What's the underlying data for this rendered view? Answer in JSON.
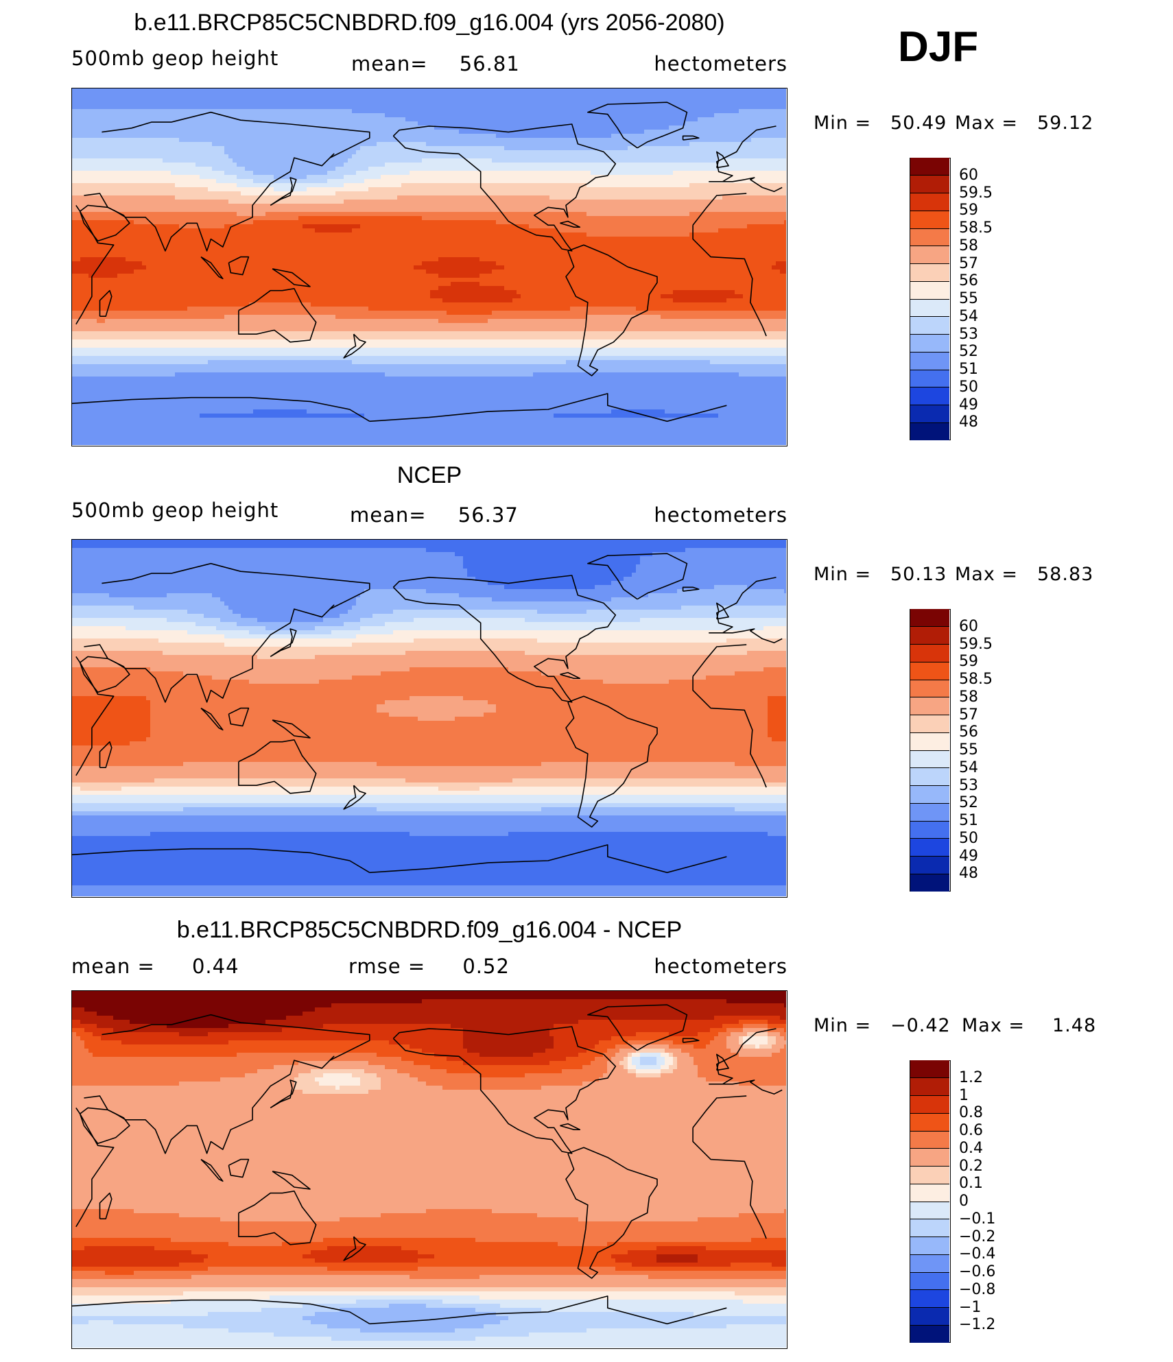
{
  "season": "DJF",
  "panels": [
    {
      "id": "model",
      "title": "b.e11.BRCP85C5CNBDRD.f09_g16.004 (yrs 2056-2080)",
      "left_label": "500mb geop height",
      "center_label": "mean=",
      "center_value": "56.81",
      "right_label": "hectometers",
      "min_label": "Min =",
      "min_value": "50.49",
      "max_label": "Max =",
      "max_value": "59.12",
      "colorbar": {
        "labels": [
          "60",
          "59.5",
          "59",
          "58.5",
          "58",
          "57",
          "56",
          "55",
          "54",
          "53",
          "52",
          "51",
          "50",
          "49",
          "48"
        ],
        "colors": [
          "#7a0403",
          "#b11d06",
          "#d8340a",
          "#ef5417",
          "#f47a48",
          "#f7a583",
          "#fbd0b7",
          "#fdeee2",
          "#dbe9f9",
          "#bcd5fb",
          "#97b8fa",
          "#6f95f6",
          "#4470ef",
          "#1d46e0",
          "#0a2ab0",
          "#00137a"
        ]
      },
      "field": {
        "bands": [
          {
            "lat": 90,
            "value": 51.5
          },
          {
            "lat": 70,
            "value": 52.5
          },
          {
            "lat": 55,
            "value": 53.8
          },
          {
            "lat": 45,
            "value": 55.5
          },
          {
            "lat": 35,
            "value": 57.0
          },
          {
            "lat": 25,
            "value": 58.3
          },
          {
            "lat": 10,
            "value": 58.8
          },
          {
            "lat": 0,
            "value": 58.9
          },
          {
            "lat": -10,
            "value": 58.8
          },
          {
            "lat": -20,
            "value": 58.6
          },
          {
            "lat": -30,
            "value": 57.6
          },
          {
            "lat": -40,
            "value": 55.3
          },
          {
            "lat": -50,
            "value": 52.5
          },
          {
            "lat": -60,
            "value": 51.3
          },
          {
            "lat": -75,
            "value": 51.0
          },
          {
            "lat": -90,
            "value": 51.6
          }
        ],
        "blobs": [
          {
            "lon": 140,
            "lat": 52,
            "rlon": 35,
            "rlat": 12,
            "value": 52.0
          },
          {
            "lon": 270,
            "lat": 75,
            "rlon": 60,
            "rlat": 12,
            "value": 51.0
          },
          {
            "lon": 160,
            "lat": 20,
            "rlon": 40,
            "rlat": 5,
            "value": 59.1
          },
          {
            "lon": 235,
            "lat": -15,
            "rlon": 35,
            "rlat": 6,
            "value": 59.1
          },
          {
            "lon": 345,
            "lat": -15,
            "rlon": 40,
            "rlat": 6,
            "value": 59.1
          }
        ]
      }
    },
    {
      "id": "obs",
      "title": "NCEP",
      "left_label": "500mb geop height",
      "center_label": "mean=",
      "center_value": "56.37",
      "right_label": "hectometers",
      "min_label": "Min =",
      "min_value": "50.13",
      "max_label": "Max =",
      "max_value": "58.83",
      "colorbar": {
        "labels": [
          "60",
          "59.5",
          "59",
          "58.5",
          "58",
          "57",
          "56",
          "55",
          "54",
          "53",
          "52",
          "51",
          "50",
          "49",
          "48"
        ],
        "colors": [
          "#7a0403",
          "#b11d06",
          "#d8340a",
          "#ef5417",
          "#f47a48",
          "#f7a583",
          "#fbd0b7",
          "#fdeee2",
          "#dbe9f9",
          "#bcd5fb",
          "#97b8fa",
          "#6f95f6",
          "#4470ef",
          "#1d46e0",
          "#0a2ab0",
          "#00137a"
        ]
      },
      "field": {
        "bands": [
          {
            "lat": 90,
            "value": 50.8
          },
          {
            "lat": 70,
            "value": 51.8
          },
          {
            "lat": 55,
            "value": 53.3
          },
          {
            "lat": 45,
            "value": 55.0
          },
          {
            "lat": 35,
            "value": 56.7
          },
          {
            "lat": 25,
            "value": 57.9
          },
          {
            "lat": 10,
            "value": 58.4
          },
          {
            "lat": 0,
            "value": 58.4
          },
          {
            "lat": -10,
            "value": 58.4
          },
          {
            "lat": -20,
            "value": 58.3
          },
          {
            "lat": -30,
            "value": 57.3
          },
          {
            "lat": -40,
            "value": 54.8
          },
          {
            "lat": -50,
            "value": 51.8
          },
          {
            "lat": -60,
            "value": 50.8
          },
          {
            "lat": -75,
            "value": 50.6
          },
          {
            "lat": -90,
            "value": 51.2
          }
        ],
        "blobs": [
          {
            "lon": 140,
            "lat": 55,
            "rlon": 40,
            "rlat": 12,
            "value": 51.0
          },
          {
            "lon": 270,
            "lat": 72,
            "rlon": 55,
            "rlat": 14,
            "value": 50.5
          },
          {
            "lon": 215,
            "lat": 5,
            "rlon": 50,
            "rlat": 10,
            "value": 57.8
          },
          {
            "lon": 60,
            "lat": 70,
            "rlon": 40,
            "rlat": 10,
            "value": 51.3
          }
        ]
      }
    },
    {
      "id": "diff",
      "title": "b.e11.BRCP85C5CNBDRD.f09_g16.004 - NCEP",
      "left_label": "mean =",
      "left_value": "0.44",
      "center_label": "rmse =",
      "center_value": "0.52",
      "right_label": "hectometers",
      "min_label": "Min =",
      "min_value": "−0.42",
      "max_label": "Max =",
      "max_value": "1.48",
      "colorbar": {
        "labels": [
          "1.2",
          "1",
          "0.8",
          "0.6",
          "0.4",
          "0.2",
          "0.1",
          "0",
          "−0.1",
          "−0.2",
          "−0.4",
          "−0.6",
          "−0.8",
          "−1",
          "−1.2"
        ],
        "colors": [
          "#7a0403",
          "#b11d06",
          "#d8340a",
          "#ef5417",
          "#f47a48",
          "#f7a583",
          "#fbd0b7",
          "#fdeee2",
          "#dbe9f9",
          "#bcd5fb",
          "#97b8fa",
          "#6f95f6",
          "#4470ef",
          "#1d46e0",
          "#0a2ab0",
          "#00137a"
        ]
      },
      "field": {
        "bands": [
          {
            "lat": 90,
            "value": 1.3
          },
          {
            "lat": 70,
            "value": 0.9
          },
          {
            "lat": 55,
            "value": 0.55
          },
          {
            "lat": 40,
            "value": 0.35
          },
          {
            "lat": 20,
            "value": 0.33
          },
          {
            "lat": 0,
            "value": 0.32
          },
          {
            "lat": -20,
            "value": 0.35
          },
          {
            "lat": -35,
            "value": 0.55
          },
          {
            "lat": -45,
            "value": 0.75
          },
          {
            "lat": -55,
            "value": 0.35
          },
          {
            "lat": -65,
            "value": 0.02
          },
          {
            "lat": -75,
            "value": -0.12
          },
          {
            "lat": -90,
            "value": -0.05
          }
        ],
        "blobs": [
          {
            "lon": 165,
            "lat": 45,
            "rlon": 30,
            "rlat": 9,
            "value": 0.05
          },
          {
            "lon": 320,
            "lat": 55,
            "rlon": 18,
            "rlat": 8,
            "value": -0.2
          },
          {
            "lon": 250,
            "lat": 62,
            "rlon": 40,
            "rlat": 12,
            "value": 1.1
          },
          {
            "lon": 95,
            "lat": 80,
            "rlon": 50,
            "rlat": 10,
            "value": 1.45
          },
          {
            "lon": 15,
            "lat": 65,
            "rlon": 18,
            "rlat": 8,
            "value": 0.0
          },
          {
            "lon": 115,
            "lat": 15,
            "rlon": 40,
            "rlat": 12,
            "value": 0.22
          },
          {
            "lon": 200,
            "lat": -75,
            "rlon": 50,
            "rlat": 8,
            "value": -0.35
          },
          {
            "lon": 55,
            "lat": -45,
            "rlon": 40,
            "rlat": 6,
            "value": 1.0
          },
          {
            "lon": 335,
            "lat": -45,
            "rlon": 30,
            "rlat": 6,
            "value": 1.05
          },
          {
            "lon": 175,
            "lat": -43,
            "rlon": 30,
            "rlat": 6,
            "value": 0.95
          }
        ]
      }
    }
  ]
}
